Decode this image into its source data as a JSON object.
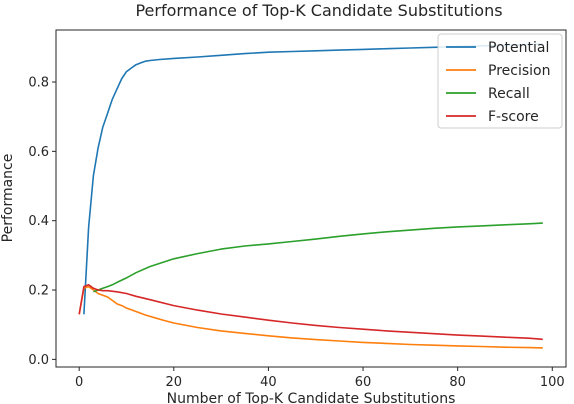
{
  "chart_data": {
    "type": "line",
    "title": "Performance of Top-K Candidate Substitutions",
    "xlabel": "Number of Top-K Candidate Substitutions",
    "ylabel": "Performance",
    "xlim": [
      -4.9,
      102.9
    ],
    "ylim": [
      -0.022,
      0.95
    ],
    "xticks": [
      0,
      20,
      40,
      60,
      80,
      100
    ],
    "yticks": [
      0.0,
      0.2,
      0.4,
      0.6,
      0.8
    ],
    "grid": false,
    "legend_position": "top-right",
    "series": [
      {
        "name": "Potential",
        "color": "#1f77b4",
        "x": [
          1,
          2,
          3,
          4,
          5,
          6,
          7,
          8,
          9,
          10,
          11,
          12,
          13,
          14,
          15,
          17,
          20,
          25,
          30,
          35,
          40,
          45,
          50,
          55,
          60,
          65,
          70,
          75,
          80,
          85,
          90,
          95,
          98
        ],
        "y": [
          0.13,
          0.38,
          0.53,
          0.61,
          0.67,
          0.71,
          0.75,
          0.78,
          0.81,
          0.83,
          0.84,
          0.85,
          0.855,
          0.86,
          0.862,
          0.865,
          0.868,
          0.872,
          0.877,
          0.882,
          0.886,
          0.888,
          0.89,
          0.892,
          0.894,
          0.896,
          0.898,
          0.9,
          0.902,
          0.904,
          0.906,
          0.908,
          0.91
        ]
      },
      {
        "name": "Precision",
        "color": "#ff7f0e",
        "x": [
          0,
          1,
          2,
          3,
          4,
          5,
          6,
          7,
          8,
          9,
          10,
          12,
          14,
          16,
          18,
          20,
          25,
          30,
          35,
          40,
          45,
          50,
          55,
          60,
          65,
          70,
          75,
          80,
          85,
          90,
          95,
          98
        ],
        "y": [
          0.13,
          0.205,
          0.21,
          0.2,
          0.19,
          0.185,
          0.18,
          0.17,
          0.16,
          0.155,
          0.148,
          0.138,
          0.128,
          0.12,
          0.112,
          0.105,
          0.092,
          0.082,
          0.075,
          0.068,
          0.062,
          0.057,
          0.053,
          0.049,
          0.046,
          0.043,
          0.041,
          0.039,
          0.037,
          0.035,
          0.034,
          0.033
        ]
      },
      {
        "name": "Recall",
        "color": "#2ca02c",
        "x": [
          3,
          4,
          5,
          6,
          7,
          8,
          10,
          12,
          15,
          20,
          25,
          30,
          35,
          40,
          45,
          50,
          55,
          60,
          65,
          70,
          75,
          80,
          85,
          90,
          95,
          98
        ],
        "y": [
          0.195,
          0.2,
          0.205,
          0.21,
          0.215,
          0.222,
          0.235,
          0.25,
          0.268,
          0.29,
          0.305,
          0.318,
          0.327,
          0.333,
          0.34,
          0.347,
          0.355,
          0.362,
          0.368,
          0.373,
          0.378,
          0.382,
          0.385,
          0.388,
          0.391,
          0.393
        ]
      },
      {
        "name": "F-score",
        "color": "#d62728",
        "x": [
          0,
          1,
          2,
          3,
          4,
          5,
          6,
          8,
          10,
          12,
          15,
          20,
          25,
          30,
          35,
          40,
          45,
          50,
          55,
          60,
          65,
          70,
          75,
          80,
          85,
          90,
          95,
          98
        ],
        "y": [
          0.13,
          0.21,
          0.215,
          0.205,
          0.2,
          0.198,
          0.198,
          0.195,
          0.19,
          0.182,
          0.172,
          0.155,
          0.142,
          0.131,
          0.122,
          0.113,
          0.105,
          0.098,
          0.092,
          0.087,
          0.082,
          0.078,
          0.074,
          0.07,
          0.067,
          0.064,
          0.061,
          0.058
        ]
      }
    ]
  }
}
